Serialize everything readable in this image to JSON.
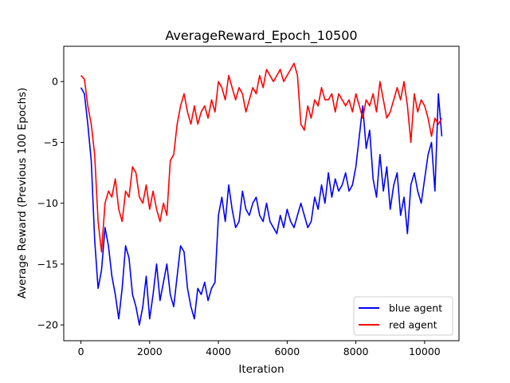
{
  "chart_data": {
    "type": "line",
    "title": "AverageReward_Epoch_10500",
    "xlabel": "Iteration",
    "ylabel": "Average Reward (Previous 100 Epochs)",
    "xlim": [
      -500,
      11000
    ],
    "ylim": [
      -21.3,
      2.9
    ],
    "xticks": [
      0,
      2000,
      4000,
      6000,
      8000,
      10000
    ],
    "yticks": [
      0,
      -5,
      -10,
      -15,
      -20
    ],
    "grid": false,
    "legend_position": "bottom-right",
    "series": [
      {
        "name": "blue agent",
        "color": "#0000ff",
        "x": [
          0,
          100,
          200,
          300,
          400,
          500,
          600,
          700,
          800,
          900,
          1000,
          1100,
          1200,
          1300,
          1400,
          1500,
          1600,
          1700,
          1800,
          1900,
          2000,
          2100,
          2200,
          2300,
          2400,
          2500,
          2600,
          2700,
          2800,
          2900,
          3000,
          3100,
          3200,
          3300,
          3400,
          3500,
          3600,
          3700,
          3800,
          3900,
          4000,
          4100,
          4200,
          4300,
          4400,
          4500,
          4600,
          4700,
          4800,
          4900,
          5000,
          5100,
          5200,
          5300,
          5400,
          5500,
          5600,
          5700,
          5800,
          5900,
          6000,
          6100,
          6200,
          6300,
          6400,
          6500,
          6600,
          6700,
          6800,
          6900,
          7000,
          7100,
          7200,
          7300,
          7400,
          7500,
          7600,
          7700,
          7800,
          7900,
          8000,
          8100,
          8200,
          8300,
          8400,
          8500,
          8600,
          8700,
          8800,
          8900,
          9000,
          9100,
          9200,
          9300,
          9400,
          9500,
          9600,
          9700,
          9800,
          9900,
          10000,
          10100,
          10200,
          10300,
          10400,
          10500
        ],
        "values": [
          -0.5,
          -1.0,
          -3.5,
          -6.5,
          -13.0,
          -17.0,
          -15.5,
          -12.0,
          -13.5,
          -16.0,
          -17.5,
          -19.5,
          -17.0,
          -13.5,
          -14.5,
          -17.5,
          -18.5,
          -20.0,
          -18.5,
          -16.0,
          -19.5,
          -17.5,
          -15.0,
          -18.0,
          -16.5,
          -15.0,
          -17.5,
          -18.5,
          -16.0,
          -13.5,
          -14.0,
          -17.0,
          -18.5,
          -19.5,
          -17.0,
          -17.5,
          -16.5,
          -18.0,
          -17.0,
          -16.5,
          -11.0,
          -9.5,
          -11.5,
          -8.5,
          -10.5,
          -12.0,
          -11.5,
          -9.0,
          -10.5,
          -11.0,
          -10.0,
          -9.5,
          -11.0,
          -11.5,
          -10.0,
          -11.5,
          -12.0,
          -12.5,
          -11.0,
          -12.0,
          -10.5,
          -11.5,
          -12.0,
          -11.0,
          -10.0,
          -11.0,
          -12.0,
          -11.5,
          -9.5,
          -10.5,
          -8.5,
          -10.0,
          -7.5,
          -9.5,
          -8.0,
          -9.0,
          -8.5,
          -7.5,
          -9.0,
          -8.5,
          -7.0,
          -4.5,
          -2.0,
          -5.5,
          -4.0,
          -8.0,
          -9.5,
          -6.0,
          -9.0,
          -7.0,
          -10.5,
          -8.5,
          -7.5,
          -11.0,
          -9.5,
          -12.5,
          -8.5,
          -7.5,
          -9.0,
          -10.0,
          -8.0,
          -6.0,
          -5.0,
          -9.0,
          -1.0,
          -4.5
        ]
      },
      {
        "name": "red agent",
        "color": "#ff0000",
        "x": [
          0,
          100,
          200,
          300,
          400,
          500,
          600,
          700,
          800,
          900,
          1000,
          1100,
          1200,
          1300,
          1400,
          1500,
          1600,
          1700,
          1800,
          1900,
          2000,
          2100,
          2200,
          2300,
          2400,
          2500,
          2600,
          2700,
          2800,
          2900,
          3000,
          3100,
          3200,
          3300,
          3400,
          3500,
          3600,
          3700,
          3800,
          3900,
          4000,
          4100,
          4200,
          4300,
          4400,
          4500,
          4600,
          4700,
          4800,
          4900,
          5000,
          5100,
          5200,
          5300,
          5400,
          5500,
          5600,
          5700,
          5800,
          5900,
          6000,
          6100,
          6200,
          6300,
          6400,
          6500,
          6600,
          6700,
          6800,
          6900,
          7000,
          7100,
          7200,
          7300,
          7400,
          7500,
          7600,
          7700,
          7800,
          7900,
          8000,
          8100,
          8200,
          8300,
          8400,
          8500,
          8600,
          8700,
          8800,
          8900,
          9000,
          9100,
          9200,
          9300,
          9400,
          9500,
          9600,
          9700,
          9800,
          9900,
          10000,
          10100,
          10200,
          10300,
          10400,
          10500
        ],
        "values": [
          0.5,
          0.2,
          -2.0,
          -3.5,
          -6.0,
          -11.5,
          -14.0,
          -10.0,
          -9.0,
          -9.5,
          -8.0,
          -10.5,
          -11.5,
          -9.0,
          -9.5,
          -7.0,
          -7.5,
          -9.5,
          -10.0,
          -8.5,
          -10.5,
          -9.0,
          -10.5,
          -11.5,
          -10.0,
          -11.0,
          -6.5,
          -6.0,
          -3.5,
          -2.0,
          -1.0,
          -2.5,
          -3.5,
          -2.0,
          -3.5,
          -2.5,
          -2.0,
          -3.0,
          -1.5,
          -2.5,
          0.0,
          -0.5,
          -1.5,
          0.5,
          -0.5,
          -1.5,
          -0.5,
          -1.0,
          -2.5,
          -1.5,
          -0.5,
          -1.0,
          0.5,
          -0.5,
          1.0,
          0.5,
          0.0,
          0.5,
          1.0,
          0.0,
          0.5,
          1.0,
          1.5,
          0.5,
          -3.5,
          -4.0,
          -2.0,
          -3.0,
          -1.5,
          -2.0,
          -0.5,
          -1.5,
          -1.5,
          -1.0,
          -2.5,
          -1.0,
          -1.5,
          -2.0,
          -1.5,
          -2.5,
          -1.0,
          -2.0,
          -3.0,
          -1.5,
          -2.0,
          -1.0,
          -2.5,
          0.0,
          -1.5,
          -3.0,
          -2.5,
          -1.5,
          -0.5,
          -1.5,
          0.0,
          -2.0,
          -5.0,
          -1.0,
          -2.5,
          -1.5,
          -2.0,
          -3.0,
          -4.5,
          -3.0,
          -3.5,
          -3.0
        ]
      }
    ]
  }
}
